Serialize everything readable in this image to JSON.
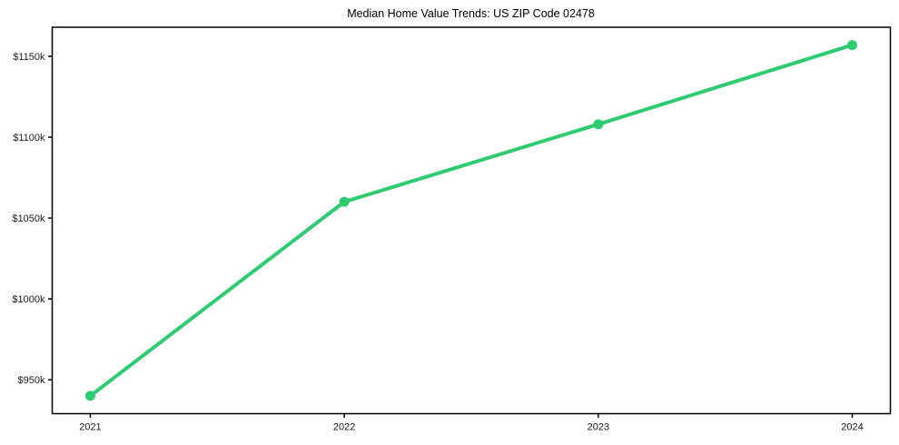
{
  "chart_data": {
    "type": "line",
    "title": "Median Home Value Trends: US ZIP Code 02478",
    "x": [
      2021,
      2022,
      2023,
      2024
    ],
    "values": [
      940,
      1060,
      1108,
      1157
    ],
    "x_tick_labels": [
      "2021",
      "2022",
      "2023",
      "2024"
    ],
    "y_ticks": [
      950,
      1000,
      1050,
      1100,
      1150
    ],
    "y_tick_labels": [
      "$950k",
      "$1000k",
      "$1050k",
      "$1100k",
      "$1150k"
    ],
    "xlim": [
      2020.85,
      2024.15
    ],
    "ylim": [
      929,
      1168
    ],
    "grid": false,
    "legend": "none",
    "line_color": "#2ecc71",
    "marker": "circle",
    "axis_color": "#000000",
    "tick_label_color": "#1a1a1a"
  }
}
